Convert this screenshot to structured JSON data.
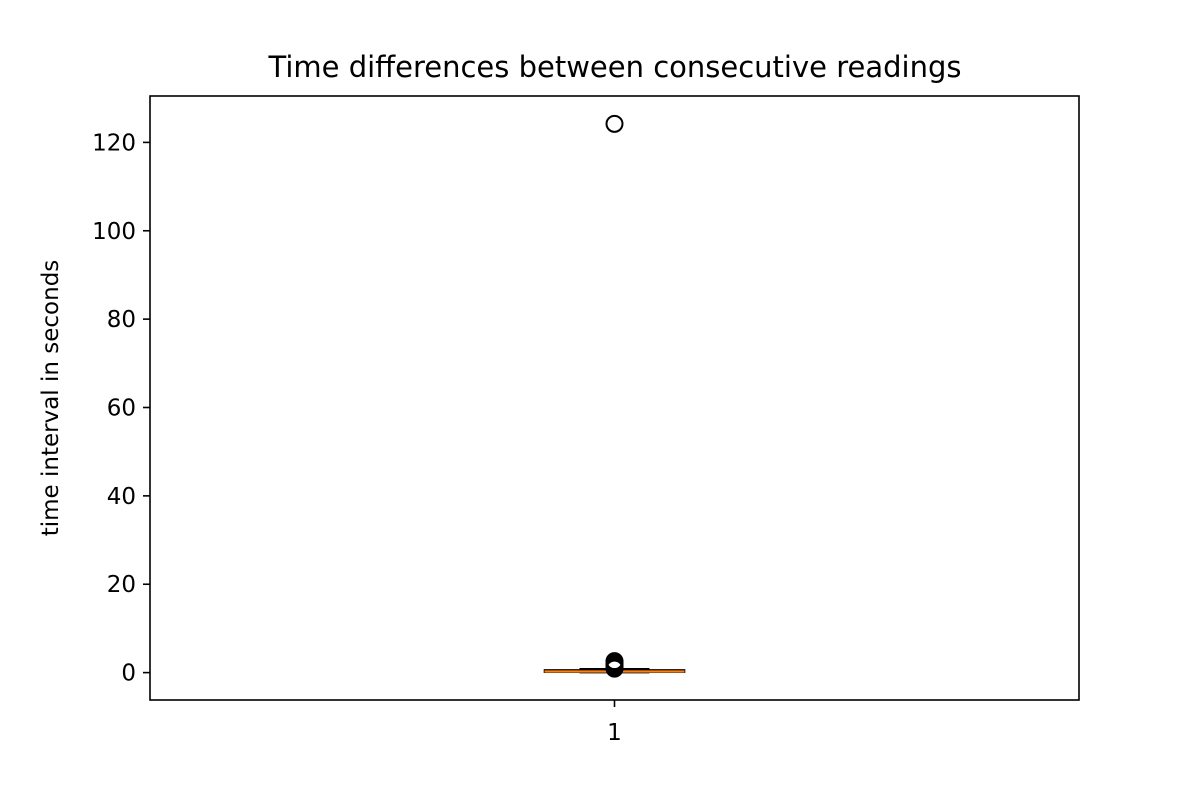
{
  "chart_data": {
    "type": "box",
    "title": "Time differences between consecutive readings",
    "xlabel": "",
    "ylabel": "time interval in seconds",
    "categories": [
      "1"
    ],
    "ylim": [
      -6.2,
      130.5
    ],
    "yticks": [
      0,
      20,
      40,
      60,
      80,
      100,
      120
    ],
    "grid": false,
    "boxes": [
      {
        "category": "1",
        "whisker_low": 0.0,
        "q1": 0.1,
        "median": 0.25,
        "q3": 0.6,
        "whisker_high": 0.85,
        "outliers": [
          124.2,
          2.6,
          2.3,
          2.0,
          1.7,
          1.5,
          1.3,
          1.1,
          0.9
        ]
      }
    ],
    "colors": {
      "box": "#000000",
      "median": "#ff7f0e",
      "outlier": "#000000"
    }
  }
}
